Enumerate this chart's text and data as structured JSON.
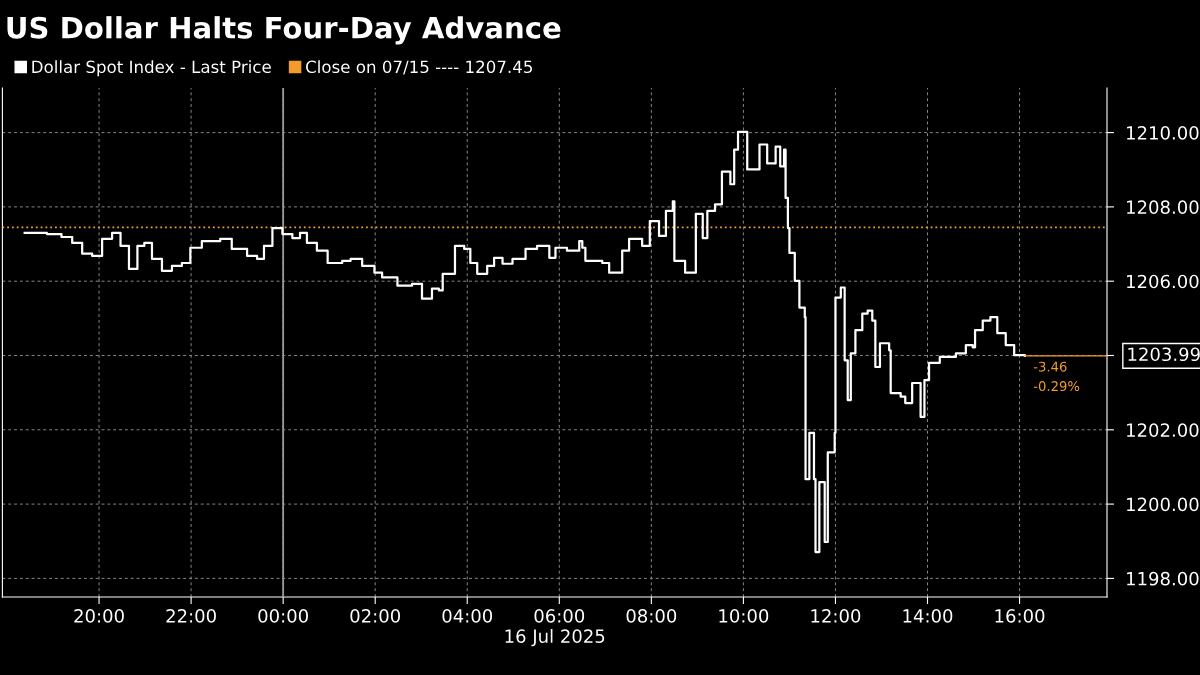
{
  "chart_data": {
    "type": "step",
    "title": "US Dollar Halts Four-Day Advance",
    "xlabel": "16 Jul 2025",
    "x": [
      "2025-07-15T18:23",
      "2025-07-15T18:52",
      "2025-07-15T19:11",
      "2025-07-15T19:25",
      "2025-07-15T19:38",
      "2025-07-15T19:51",
      "2025-07-15T20:04",
      "2025-07-15T20:17",
      "2025-07-15T20:28",
      "2025-07-15T20:39",
      "2025-07-15T20:50",
      "2025-07-15T20:59",
      "2025-07-15T21:09",
      "2025-07-15T21:22",
      "2025-07-15T21:35",
      "2025-07-15T21:48",
      "2025-07-15T21:59",
      "2025-07-15T22:14",
      "2025-07-15T22:38",
      "2025-07-15T22:53",
      "2025-07-15T23:13",
      "2025-07-15T23:26",
      "2025-07-15T23:35",
      "2025-07-15T23:46",
      "2025-07-15T23:59",
      "2025-07-16T00:12",
      "2025-07-16T00:22",
      "2025-07-16T00:31",
      "2025-07-16T00:44",
      "2025-07-16T00:58",
      "2025-07-16T01:17",
      "2025-07-16T01:28",
      "2025-07-16T01:43",
      "2025-07-16T01:59",
      "2025-07-16T02:09",
      "2025-07-16T02:20",
      "2025-07-16T02:29",
      "2025-07-16T02:35",
      "2025-07-16T02:48",
      "2025-07-16T03:01",
      "2025-07-16T03:14",
      "2025-07-16T03:23",
      "2025-07-16T03:28",
      "2025-07-16T03:44",
      "2025-07-16T03:56",
      "2025-07-16T04:04",
      "2025-07-16T04:13",
      "2025-07-16T04:26",
      "2025-07-16T04:35",
      "2025-07-16T04:46",
      "2025-07-16T04:59",
      "2025-07-16T05:16",
      "2025-07-16T05:31",
      "2025-07-16T05:47",
      "2025-07-16T05:55",
      "2025-07-16T06:10",
      "2025-07-16T06:26",
      "2025-07-16T06:30",
      "2025-07-16T06:34",
      "2025-07-16T06:56",
      "2025-07-16T07:05",
      "2025-07-16T07:22",
      "2025-07-16T07:31",
      "2025-07-16T07:48",
      "2025-07-16T07:58",
      "2025-07-16T08:10",
      "2025-07-16T08:19",
      "2025-07-16T08:28",
      "2025-07-16T08:30",
      "2025-07-16T08:44",
      "2025-07-16T08:58",
      "2025-07-16T09:07",
      "2025-07-16T09:13",
      "2025-07-16T09:23",
      "2025-07-16T09:32",
      "2025-07-16T09:43",
      "2025-07-16T09:48",
      "2025-07-16T09:53",
      "2025-07-16T10:05",
      "2025-07-16T10:21",
      "2025-07-16T10:31",
      "2025-07-16T10:42",
      "2025-07-16T10:48",
      "2025-07-16T10:53",
      "2025-07-16T10:55",
      "2025-07-16T10:58",
      "2025-07-16T11:00",
      "2025-07-16T11:07",
      "2025-07-16T11:13",
      "2025-07-16T11:20",
      "2025-07-16T11:21",
      "2025-07-16T11:26",
      "2025-07-16T11:32",
      "2025-07-16T11:34",
      "2025-07-16T11:39",
      "2025-07-16T11:46",
      "2025-07-16T11:50",
      "2025-07-16T11:59",
      "2025-07-16T12:00",
      "2025-07-16T12:07",
      "2025-07-16T12:12",
      "2025-07-16T12:16",
      "2025-07-16T12:20",
      "2025-07-16T12:26",
      "2025-07-16T12:35",
      "2025-07-16T12:42",
      "2025-07-16T12:48",
      "2025-07-16T12:52",
      "2025-07-16T12:58",
      "2025-07-16T13:10",
      "2025-07-16T13:12",
      "2025-07-16T13:25",
      "2025-07-16T13:31",
      "2025-07-16T13:40",
      "2025-07-16T13:51",
      "2025-07-16T13:56",
      "2025-07-16T14:02",
      "2025-07-16T14:16",
      "2025-07-16T14:37",
      "2025-07-16T14:50",
      "2025-07-16T14:59",
      "2025-07-16T15:02",
      "2025-07-16T15:12",
      "2025-07-16T15:22",
      "2025-07-16T15:31",
      "2025-07-16T15:42",
      "2025-07-16T15:53",
      "2025-07-16T16:07"
    ],
    "series": [
      {
        "name": "Dollar Spot Index - Last Price",
        "color": "#ffffff",
        "values": [
          1207.3,
          1207.27,
          1207.19,
          1207.03,
          1206.74,
          1206.68,
          1207.14,
          1207.3,
          1206.95,
          1206.33,
          1206.95,
          1207.03,
          1206.6,
          1206.28,
          1206.41,
          1206.49,
          1206.9,
          1207.08,
          1207.14,
          1206.87,
          1206.68,
          1206.6,
          1206.95,
          1207.43,
          1207.27,
          1207.16,
          1207.3,
          1207.03,
          1206.82,
          1206.49,
          1206.55,
          1206.6,
          1206.41,
          1206.23,
          1206.1,
          1206.1,
          1205.88,
          1205.88,
          1205.93,
          1205.53,
          1205.8,
          1205.75,
          1206.2,
          1206.95,
          1206.87,
          1206.49,
          1206.2,
          1206.41,
          1206.63,
          1206.47,
          1206.6,
          1206.87,
          1206.95,
          1206.63,
          1206.9,
          1206.82,
          1207.08,
          1206.9,
          1206.55,
          1206.49,
          1206.23,
          1206.82,
          1207.14,
          1206.95,
          1207.62,
          1207.22,
          1207.89,
          1208.15,
          1206.55,
          1206.23,
          1207.81,
          1207.16,
          1207.89,
          1208.07,
          1208.95,
          1208.61,
          1209.54,
          1210.02,
          1209.01,
          1209.68,
          1209.17,
          1209.62,
          1209.09,
          1209.54,
          1208.24,
          1207.43,
          1206.76,
          1206.01,
          1205.29,
          1205.03,
          1200.67,
          1201.92,
          1200.67,
          1198.71,
          1200.59,
          1198.98,
          1201.39,
          1201.92,
          1205.56,
          1205.83,
          1203.87,
          1202.8,
          1204.06,
          1204.68,
          1205.13,
          1205.21,
          1204.94,
          1203.69,
          1204.33,
          1204.14,
          1202.99,
          1202.89,
          1202.72,
          1203.26,
          1202.35,
          1203.34,
          1203.8,
          1203.96,
          1204.06,
          1204.28,
          1204.22,
          1204.68,
          1204.94,
          1205.03,
          1204.6,
          1204.28,
          1204.01,
          1203.99
        ]
      }
    ],
    "xlim": [
      "2025-07-15T17:54",
      "2025-07-16T17:54"
    ],
    "ylim": [
      1197.5,
      1211.2
    ],
    "xticks": [
      {
        "value": "2025-07-15T20:00",
        "label": "20:00"
      },
      {
        "value": "2025-07-15T22:00",
        "label": "22:00"
      },
      {
        "value": "2025-07-16T00:00",
        "label": "00:00"
      },
      {
        "value": "2025-07-16T02:00",
        "label": "02:00"
      },
      {
        "value": "2025-07-16T04:00",
        "label": "04:00"
      },
      {
        "value": "2025-07-16T06:00",
        "label": "06:00"
      },
      {
        "value": "2025-07-16T08:00",
        "label": "08:00"
      },
      {
        "value": "2025-07-16T10:00",
        "label": "10:00"
      },
      {
        "value": "2025-07-16T12:00",
        "label": "12:00"
      },
      {
        "value": "2025-07-16T14:00",
        "label": "14:00"
      },
      {
        "value": "2025-07-16T16:00",
        "label": "16:00"
      }
    ],
    "yticks": [
      {
        "value": 1198,
        "label": "1198.00"
      },
      {
        "value": 1200,
        "label": "1200.00"
      },
      {
        "value": 1202,
        "label": "1202.00"
      },
      {
        "value": 1204,
        "label": null
      },
      {
        "value": 1206,
        "label": "1206.00"
      },
      {
        "value": 1208,
        "label": "1208.00"
      },
      {
        "value": 1210,
        "label": "1210.00"
      }
    ],
    "ref_lines": [
      {
        "axis": "y",
        "value": 1207.45,
        "label": "Close on 07/15 ---- 1207.45",
        "color": "#f39c2c",
        "line_style": "dotted"
      },
      {
        "axis": "x",
        "value": "2025-07-16T00:00",
        "color": "#9a9a9a",
        "line_style": "solid"
      }
    ],
    "annotations": [
      {
        "text": "1203.99",
        "x": "2025-07-16T16:07",
        "y": 1203.99
      },
      {
        "text": "-3.46",
        "x": "2025-07-16T16:07",
        "y": 1203.99
      },
      {
        "text": "-0.29%",
        "x": "2025-07-16T16:07",
        "y": 1203.99
      }
    ],
    "grid": true,
    "legend": "top left"
  }
}
